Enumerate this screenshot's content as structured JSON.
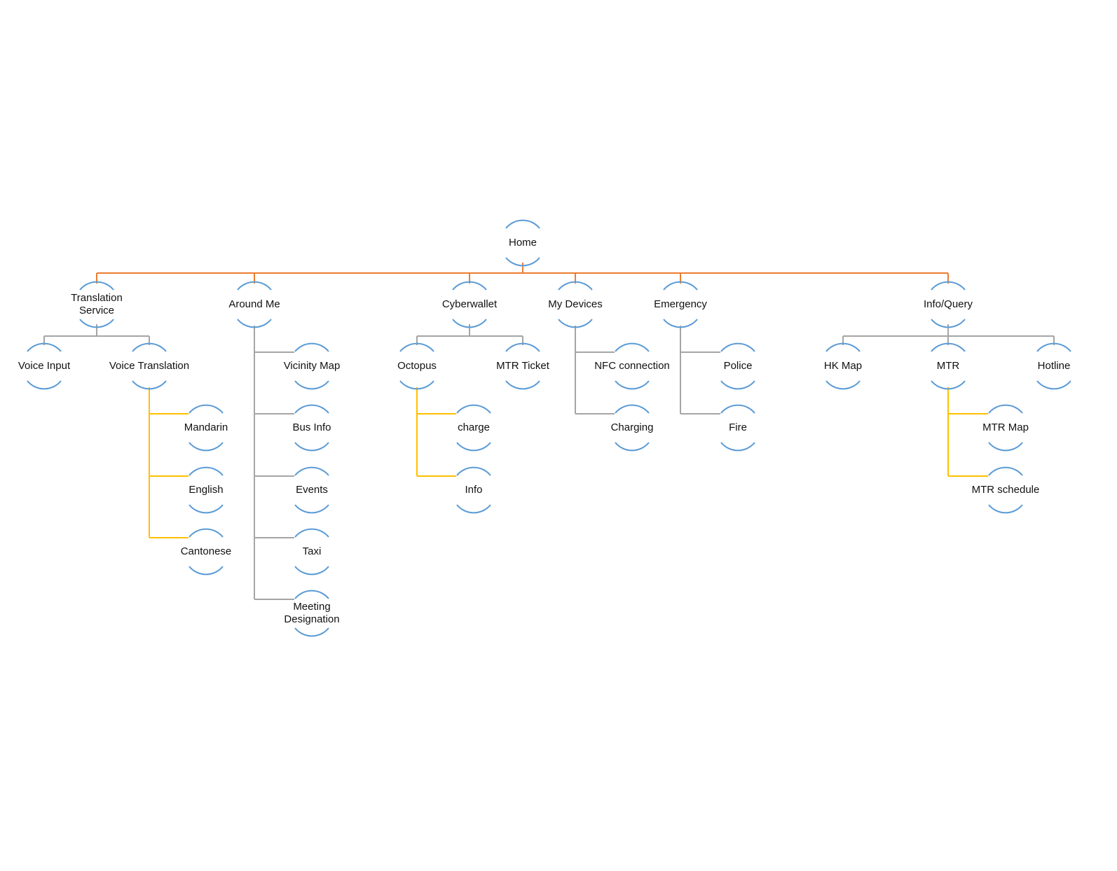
{
  "diagram": {
    "type": "hierarchy",
    "colors": {
      "level1_connector": "#ED7D31",
      "level2_connector": "#A5A5A5",
      "level3_connector": "#FFC000",
      "node_arc": "#5B9BD5",
      "text": "#111111"
    },
    "nodes": {
      "home": "Home",
      "translation": "Translation\nService",
      "around": "Around Me",
      "cyber": "Cyberwallet",
      "devices": "My Devices",
      "emergency": "Emergency",
      "info": "Info/Query",
      "voice_input": "Voice Input",
      "voice_translation": "Voice Translation",
      "mandarin": "Mandarin",
      "english": "English",
      "cantonese": "Cantonese",
      "vicinity_map": "Vicinity Map",
      "bus_info": "Bus Info",
      "events": "Events",
      "taxi": "Taxi",
      "meeting": "Meeting\nDesignation",
      "octopus": "Octopus",
      "mtr_ticket": "MTR Ticket",
      "charge": "charge",
      "octopus_info": "Info",
      "nfc": "NFC connection",
      "charging": "Charging",
      "police": "Police",
      "fire": "Fire",
      "hk_map": "HK Map",
      "mtr": "MTR",
      "hotline": "Hotline",
      "mtr_map": "MTR Map",
      "mtr_schedule": "MTR schedule"
    },
    "edges": [
      [
        "home",
        "translation"
      ],
      [
        "home",
        "around"
      ],
      [
        "home",
        "cyber"
      ],
      [
        "home",
        "devices"
      ],
      [
        "home",
        "emergency"
      ],
      [
        "home",
        "info"
      ],
      [
        "translation",
        "voice_input"
      ],
      [
        "translation",
        "voice_translation"
      ],
      [
        "voice_translation",
        "mandarin"
      ],
      [
        "voice_translation",
        "english"
      ],
      [
        "voice_translation",
        "cantonese"
      ],
      [
        "around",
        "vicinity_map"
      ],
      [
        "around",
        "bus_info"
      ],
      [
        "around",
        "events"
      ],
      [
        "around",
        "taxi"
      ],
      [
        "around",
        "meeting"
      ],
      [
        "cyber",
        "octopus"
      ],
      [
        "cyber",
        "mtr_ticket"
      ],
      [
        "octopus",
        "charge"
      ],
      [
        "octopus",
        "octopus_info"
      ],
      [
        "devices",
        "nfc"
      ],
      [
        "devices",
        "charging"
      ],
      [
        "emergency",
        "police"
      ],
      [
        "emergency",
        "fire"
      ],
      [
        "info",
        "hk_map"
      ],
      [
        "info",
        "mtr"
      ],
      [
        "info",
        "hotline"
      ],
      [
        "mtr",
        "mtr_map"
      ],
      [
        "mtr",
        "mtr_schedule"
      ]
    ]
  }
}
